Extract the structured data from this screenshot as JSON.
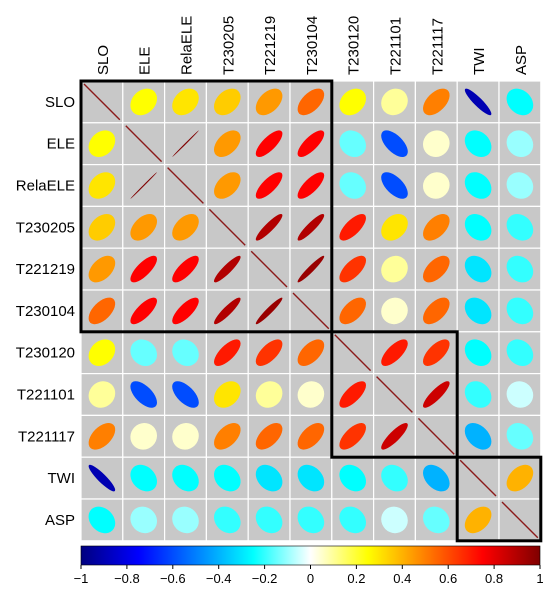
{
  "chart_data": {
    "type": "heatmap",
    "title": "",
    "variables": [
      "SLO",
      "ELE",
      "RelaELE",
      "T230205",
      "T221219",
      "T230104",
      "T230120",
      "T221101",
      "T221117",
      "TWI",
      "ASP"
    ],
    "matrix": [
      [
        1.0,
        0.25,
        0.3,
        0.35,
        0.45,
        0.55,
        0.25,
        0.1,
        0.5,
        -0.9,
        -0.25
      ],
      [
        0.25,
        1.0,
        1.0,
        0.45,
        0.75,
        0.75,
        -0.15,
        -0.6,
        0.05,
        -0.25,
        -0.1
      ],
      [
        0.3,
        1.0,
        1.0,
        0.45,
        0.75,
        0.75,
        -0.15,
        -0.6,
        0.05,
        -0.25,
        -0.1
      ],
      [
        0.35,
        0.45,
        0.45,
        1.0,
        0.9,
        0.9,
        0.7,
        0.3,
        0.5,
        -0.25,
        -0.2
      ],
      [
        0.45,
        0.75,
        0.75,
        0.9,
        1.0,
        0.95,
        0.65,
        0.1,
        0.55,
        -0.3,
        -0.2
      ],
      [
        0.55,
        0.75,
        0.75,
        0.9,
        0.95,
        1.0,
        0.55,
        0.05,
        0.55,
        -0.3,
        -0.2
      ],
      [
        0.25,
        -0.15,
        -0.15,
        0.7,
        0.65,
        0.55,
        1.0,
        0.7,
        0.65,
        -0.25,
        -0.2
      ],
      [
        0.1,
        -0.6,
        -0.6,
        0.3,
        0.1,
        0.05,
        0.7,
        1.0,
        0.85,
        -0.2,
        -0.05
      ],
      [
        0.5,
        0.05,
        0.05,
        0.5,
        0.55,
        0.55,
        0.65,
        0.85,
        1.0,
        -0.4,
        -0.15
      ],
      [
        -0.9,
        -0.25,
        -0.25,
        -0.25,
        -0.3,
        -0.3,
        -0.25,
        -0.2,
        -0.4,
        1.0,
        0.4
      ],
      [
        -0.25,
        -0.1,
        -0.1,
        -0.2,
        -0.2,
        -0.2,
        -0.2,
        -0.05,
        -0.15,
        0.4,
        1.0
      ]
    ],
    "clusters": [
      {
        "start": 0,
        "end": 5
      },
      {
        "start": 6,
        "end": 8
      },
      {
        "start": 9,
        "end": 10
      }
    ],
    "colorbar": {
      "min": -1,
      "max": 1,
      "ticks": [
        -1,
        -0.8,
        -0.6,
        -0.4,
        -0.2,
        0,
        0.2,
        0.4,
        0.6,
        0.8,
        1
      ],
      "tick_labels": [
        "−1",
        "−0.8",
        "−0.6",
        "−0.4",
        "−0.2",
        "0",
        "0.2",
        "0.4",
        "0.6",
        "0.8",
        "1"
      ],
      "stops": [
        "#00007F",
        "#0000FF",
        "#007FFF",
        "#00FFFF",
        "#FFFFFF",
        "#FFFF00",
        "#FF7F00",
        "#FF0000",
        "#7F0000"
      ]
    },
    "colors": {
      "diagonal_line": "#8B1A1A",
      "cell_background": "#c8c8c8",
      "grid": "#ffffff",
      "cluster_box": "#000000"
    },
    "xlabel": "",
    "ylabel": "",
    "grid": true,
    "legend": "bottom"
  }
}
